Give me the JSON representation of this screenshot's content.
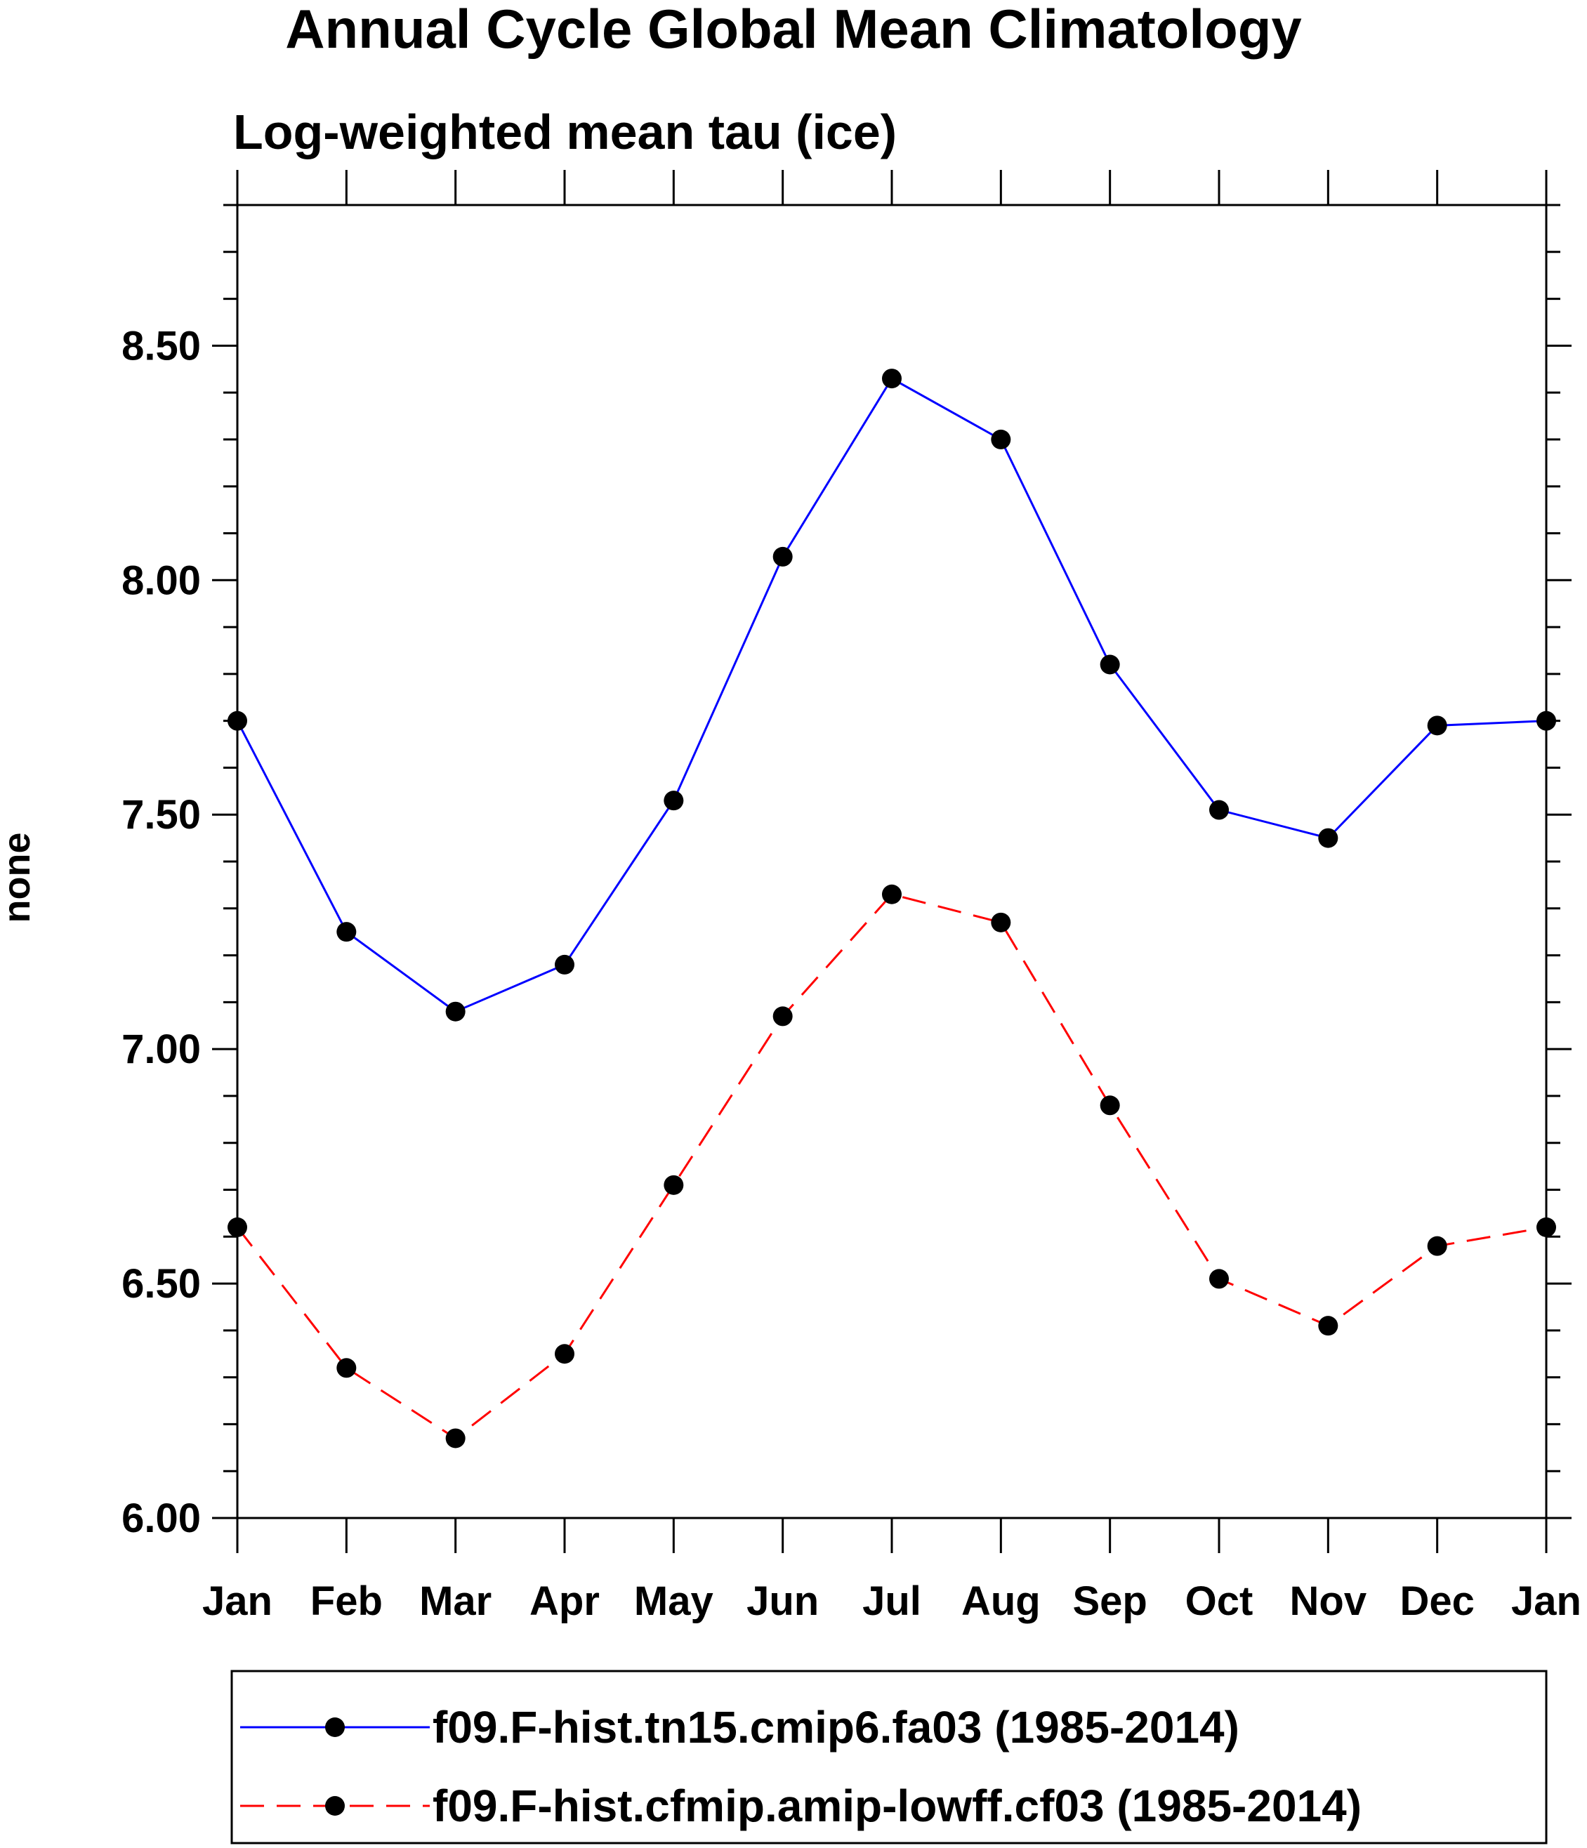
{
  "chart_data": {
    "type": "line",
    "title": "Annual Cycle Global Mean Climatology",
    "subtitle": "Log-weighted mean tau (ice)",
    "xlabel": "",
    "ylabel": "none",
    "categories": [
      "Jan",
      "Feb",
      "Mar",
      "Apr",
      "May",
      "Jun",
      "Jul",
      "Aug",
      "Sep",
      "Oct",
      "Nov",
      "Dec",
      "Jan"
    ],
    "ylim": [
      6.0,
      8.8
    ],
    "yticks": [
      "6.00",
      "6.50",
      "7.00",
      "7.50",
      "8.00",
      "8.50"
    ],
    "grid": false,
    "legend_position": "bottom",
    "series": [
      {
        "name": "f09.F-hist.tn15.cmip6.fa03 (1985-2014)",
        "color": "#0000ff",
        "dash": "solid",
        "values": [
          7.7,
          7.25,
          7.08,
          7.18,
          7.53,
          8.05,
          8.43,
          8.3,
          7.82,
          7.51,
          7.45,
          7.69,
          7.7
        ]
      },
      {
        "name": "f09.F-hist.cfmip.amip-lowff.cf03 (1985-2014)",
        "color": "#ff0000",
        "dash": "dashed",
        "values": [
          6.62,
          6.32,
          6.17,
          6.35,
          6.71,
          7.07,
          7.33,
          7.27,
          6.88,
          6.51,
          6.41,
          6.58,
          6.62
        ]
      }
    ]
  }
}
